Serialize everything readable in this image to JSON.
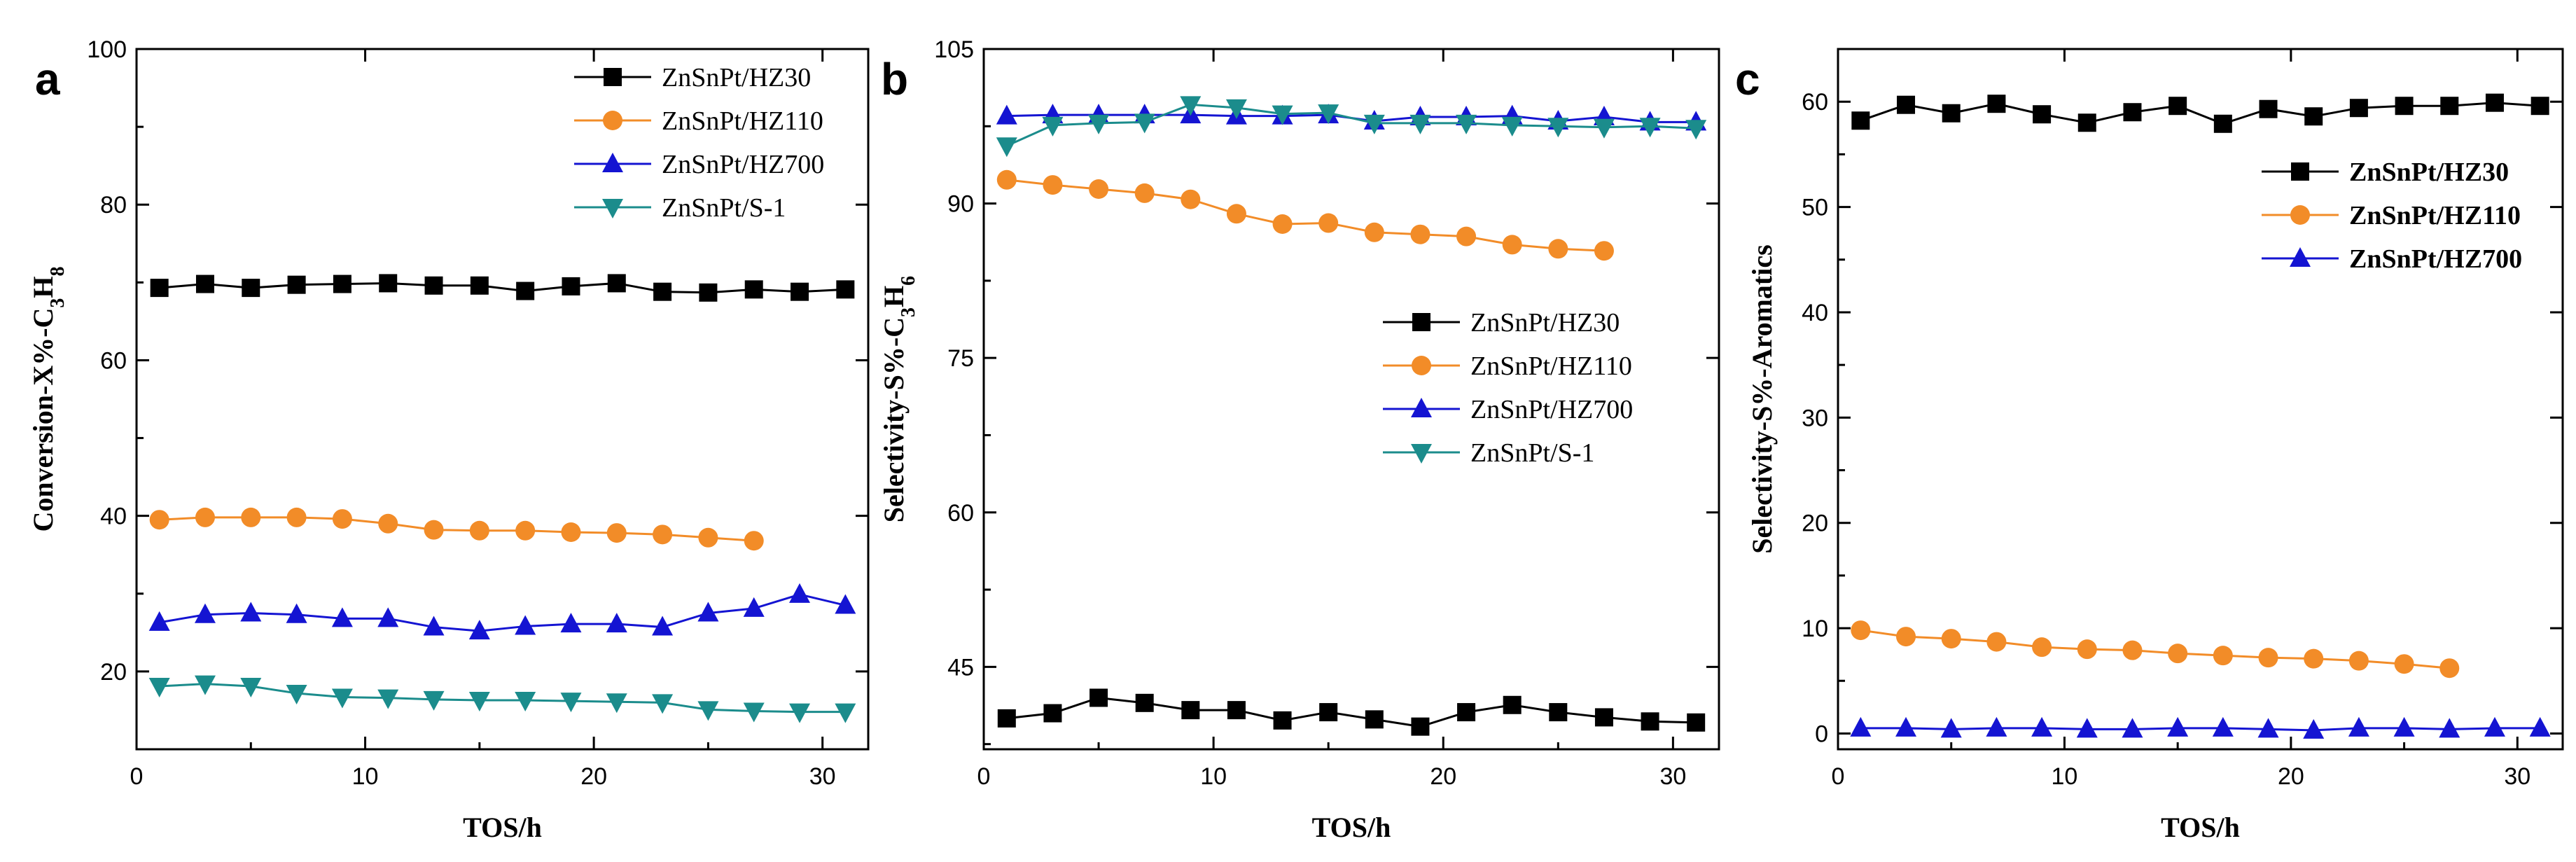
{
  "chart_data": [
    {
      "panel": "a",
      "type": "line",
      "xlabel": "TOS/h",
      "ylabel_parts": [
        "Conversion-X%-C",
        "3",
        "H",
        "8"
      ],
      "xlim": [
        0,
        32
      ],
      "ylim": [
        10,
        100
      ],
      "xticks": [
        0,
        10,
        20,
        30
      ],
      "yticks": [
        20,
        40,
        60,
        80,
        100
      ],
      "legend": {
        "position": "top-right",
        "bold": false
      },
      "series": [
        {
          "name": "ZnSnPt/HZ30",
          "marker": "square",
          "color": "#000000",
          "x": [
            1,
            3,
            5,
            7,
            9,
            11,
            13,
            15,
            17,
            19,
            21,
            23,
            25,
            27,
            29,
            31
          ],
          "y": [
            69.3,
            69.8,
            69.3,
            69.7,
            69.8,
            69.9,
            69.6,
            69.6,
            68.9,
            69.5,
            69.9,
            68.8,
            68.7,
            69.1,
            68.8,
            69.1
          ]
        },
        {
          "name": "ZnSnPt/HZ110",
          "marker": "circle",
          "color": "#f28c28",
          "x": [
            1,
            3,
            5,
            7,
            9,
            11,
            13,
            15,
            17,
            19,
            21,
            23,
            25,
            27
          ],
          "y": [
            39.5,
            39.8,
            39.8,
            39.8,
            39.6,
            39.0,
            38.2,
            38.1,
            38.1,
            37.9,
            37.8,
            37.6,
            37.2,
            36.8
          ]
        },
        {
          "name": "ZnSnPt/HZ700",
          "marker": "triangle-up",
          "color": "#1414d2",
          "x": [
            1,
            3,
            5,
            7,
            9,
            11,
            13,
            15,
            17,
            19,
            21,
            23,
            25,
            27,
            29,
            31
          ],
          "y": [
            26.3,
            27.3,
            27.5,
            27.3,
            26.8,
            26.8,
            25.7,
            25.2,
            25.8,
            26.1,
            26.1,
            25.7,
            27.5,
            28.1,
            29.9,
            28.5
          ]
        },
        {
          "name": "ZnSnPt/S-1",
          "marker": "triangle-down",
          "color": "#1b8c8c",
          "x": [
            1,
            3,
            5,
            7,
            9,
            11,
            13,
            15,
            17,
            19,
            21,
            23,
            25,
            27,
            29,
            31
          ],
          "y": [
            18.1,
            18.4,
            18.1,
            17.2,
            16.7,
            16.6,
            16.4,
            16.3,
            16.3,
            16.2,
            16.1,
            16.0,
            15.1,
            14.9,
            14.8,
            14.8
          ]
        }
      ]
    },
    {
      "panel": "b",
      "type": "line",
      "xlabel": "TOS/h",
      "ylabel_parts": [
        "Selectivity-S%-C",
        "3",
        "H",
        "6"
      ],
      "xlim": [
        0,
        32
      ],
      "ylim": [
        37,
        105
      ],
      "xticks": [
        0,
        10,
        20,
        30
      ],
      "yticks": [
        45,
        60,
        75,
        90,
        105
      ],
      "legend": {
        "position": "center-right",
        "bold": false
      },
      "series": [
        {
          "name": "ZnSnPt/HZ30",
          "marker": "square",
          "color": "#000000",
          "x": [
            1,
            3,
            5,
            7,
            9,
            11,
            13,
            15,
            17,
            19,
            21,
            23,
            25,
            27,
            29,
            31
          ],
          "y": [
            40.0,
            40.5,
            42.0,
            41.5,
            40.8,
            40.8,
            39.8,
            40.6,
            39.9,
            39.2,
            40.6,
            41.3,
            40.6,
            40.1,
            39.7,
            39.6
          ]
        },
        {
          "name": "ZnSnPt/HZ110",
          "marker": "circle",
          "color": "#f28c28",
          "x": [
            1,
            3,
            5,
            7,
            9,
            11,
            13,
            15,
            17,
            19,
            21,
            23,
            25,
            27
          ],
          "y": [
            92.3,
            91.8,
            91.4,
            91.0,
            90.4,
            89.0,
            88.0,
            88.1,
            87.2,
            87.0,
            86.8,
            86.0,
            85.6,
            85.4
          ]
        },
        {
          "name": "ZnSnPt/HZ700",
          "marker": "triangle-up",
          "color": "#1414d2",
          "x": [
            1,
            3,
            5,
            7,
            9,
            11,
            13,
            15,
            17,
            19,
            21,
            23,
            25,
            27,
            29,
            31
          ],
          "y": [
            98.5,
            98.6,
            98.6,
            98.6,
            98.6,
            98.5,
            98.5,
            98.6,
            98.0,
            98.4,
            98.4,
            98.5,
            98.0,
            98.4,
            97.9,
            97.9
          ]
        },
        {
          "name": "ZnSnPt/S-1",
          "marker": "triangle-down",
          "color": "#1b8c8c",
          "x": [
            1,
            3,
            5,
            7,
            9,
            11,
            13,
            15,
            17,
            19,
            21,
            23,
            25,
            27,
            29,
            31
          ],
          "y": [
            95.6,
            97.6,
            97.8,
            97.9,
            99.6,
            99.3,
            98.7,
            98.8,
            97.8,
            97.8,
            97.8,
            97.6,
            97.5,
            97.4,
            97.5,
            97.3
          ]
        }
      ]
    },
    {
      "panel": "c",
      "type": "line",
      "xlabel": "TOS/h",
      "ylabel_parts": [
        "Selectivity-S%-Aromatics"
      ],
      "xlim": [
        0,
        32
      ],
      "ylim": [
        -1.5,
        65
      ],
      "xticks": [
        0,
        10,
        20,
        30
      ],
      "yticks": [
        0,
        10,
        20,
        30,
        40,
        50,
        60
      ],
      "legend": {
        "position": "top-right",
        "bold": true
      },
      "series": [
        {
          "name": "ZnSnPt/HZ30",
          "marker": "square",
          "color": "#000000",
          "x": [
            1,
            3,
            5,
            7,
            9,
            11,
            13,
            15,
            17,
            19,
            21,
            23,
            25,
            27,
            29,
            31
          ],
          "y": [
            58.2,
            59.7,
            58.9,
            59.8,
            58.8,
            58.0,
            59.0,
            59.6,
            57.9,
            59.3,
            58.6,
            59.4,
            59.6,
            59.6,
            59.9,
            59.6
          ]
        },
        {
          "name": "ZnSnPt/HZ110",
          "marker": "circle",
          "color": "#f28c28",
          "x": [
            1,
            3,
            5,
            7,
            9,
            11,
            13,
            15,
            17,
            19,
            21,
            23,
            25,
            27
          ],
          "y": [
            9.8,
            9.2,
            9.0,
            8.7,
            8.2,
            8.0,
            7.9,
            7.6,
            7.4,
            7.2,
            7.1,
            6.9,
            6.6,
            6.2
          ]
        },
        {
          "name": "ZnSnPt/HZ700",
          "marker": "triangle-up",
          "color": "#1414d2",
          "x": [
            1,
            3,
            5,
            7,
            9,
            11,
            13,
            15,
            17,
            19,
            21,
            23,
            25,
            27,
            29,
            31
          ],
          "y": [
            0.5,
            0.5,
            0.4,
            0.5,
            0.5,
            0.4,
            0.4,
            0.5,
            0.5,
            0.4,
            0.3,
            0.5,
            0.5,
            0.4,
            0.5,
            0.5
          ]
        }
      ]
    }
  ]
}
